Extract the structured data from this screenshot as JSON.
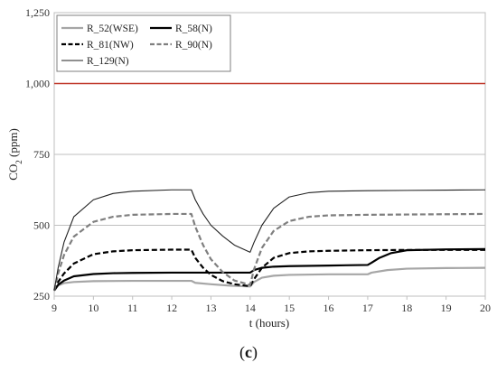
{
  "caption": {
    "open": "(",
    "letter": "c",
    "close": ")"
  },
  "chart_data": {
    "type": "line",
    "title": "",
    "xlabel": "t (hours)",
    "ylabel": {
      "base": "CO",
      "sub": "2",
      "rest": " (ppm)"
    },
    "xlim": [
      9,
      20
    ],
    "ylim": [
      250,
      1250
    ],
    "xticks": [
      "9",
      "10",
      "11",
      "12",
      "13",
      "14",
      "15",
      "16",
      "17",
      "18",
      "19",
      "20"
    ],
    "yticks": [
      "250",
      "500",
      "750",
      "1,000",
      "1,250"
    ],
    "ytick_values": [
      250,
      500,
      750,
      1000,
      1250
    ],
    "gridlines_y": [
      500,
      750,
      1000
    ],
    "reference_line": {
      "y": 1000,
      "color": "#c0392b"
    },
    "legend_placement": "top-left",
    "series": [
      {
        "name": "R_52(WSE)",
        "color": "#a6a6a6",
        "style": "solid",
        "width": 2.2,
        "x": [
          9,
          9.1,
          9.25,
          9.5,
          10,
          11,
          12,
          12.5,
          12.6,
          13,
          13.5,
          14,
          14.1,
          14.3,
          14.6,
          15,
          16,
          17,
          17.1,
          17.5,
          18,
          19,
          20
        ],
        "y": [
          270,
          288,
          296,
          300,
          303,
          304,
          304,
          304,
          297,
          292,
          287,
          284,
          300,
          315,
          322,
          325,
          327,
          327,
          333,
          342,
          347,
          349,
          350
        ]
      },
      {
        "name": "R_58(N)",
        "color": "#000000",
        "style": "solid",
        "width": 2.2,
        "x": [
          9,
          9.1,
          9.25,
          9.5,
          10,
          10.5,
          11,
          12,
          12.5,
          13,
          13.5,
          14,
          14.1,
          14.3,
          14.6,
          15,
          16,
          17,
          17.1,
          17.3,
          17.6,
          18,
          19,
          20
        ],
        "y": [
          270,
          290,
          305,
          320,
          328,
          331,
          332,
          333,
          333,
          333,
          333,
          333,
          342,
          350,
          354,
          356,
          358,
          360,
          368,
          385,
          402,
          412,
          415,
          416
        ]
      },
      {
        "name": "R_81(NW)",
        "color": "#000000",
        "style": "dashed",
        "width": 2.2,
        "x": [
          9,
          9.1,
          9.25,
          9.5,
          10,
          10.5,
          11,
          12,
          12.5,
          12.6,
          12.8,
          13,
          13.3,
          13.6,
          14,
          14.1,
          14.3,
          14.6,
          15,
          15.5,
          16,
          17,
          18,
          19,
          20
        ],
        "y": [
          270,
          300,
          330,
          365,
          398,
          408,
          412,
          414,
          414,
          385,
          350,
          325,
          303,
          292,
          285,
          310,
          350,
          385,
          402,
          408,
          410,
          412,
          413,
          413,
          413
        ]
      },
      {
        "name": "R_90(N)",
        "color": "#7f7f7f",
        "style": "dashed",
        "width": 2.2,
        "x": [
          9,
          9.1,
          9.25,
          9.5,
          10,
          10.5,
          11,
          12,
          12.5,
          12.6,
          12.8,
          13,
          13.3,
          13.6,
          14,
          14.1,
          14.3,
          14.6,
          15,
          15.5,
          16,
          17,
          18,
          19,
          20
        ],
        "y": [
          270,
          330,
          395,
          460,
          512,
          530,
          537,
          540,
          540,
          495,
          430,
          380,
          335,
          305,
          290,
          345,
          420,
          480,
          515,
          530,
          535,
          537,
          538,
          539,
          540
        ]
      },
      {
        "name": "R_129(N)",
        "color": "#222222",
        "style": "solid",
        "width": 1.1,
        "x": [
          9,
          9.1,
          9.25,
          9.5,
          10,
          10.5,
          11,
          12,
          12.5,
          12.6,
          12.8,
          13,
          13.3,
          13.6,
          14,
          14.1,
          14.3,
          14.6,
          15,
          15.5,
          16,
          17,
          18,
          19,
          20
        ],
        "y": [
          270,
          350,
          440,
          530,
          590,
          612,
          620,
          625,
          625,
          590,
          540,
          500,
          462,
          430,
          405,
          440,
          500,
          560,
          600,
          615,
          620,
          622,
          623,
          624,
          625
        ]
      }
    ]
  }
}
